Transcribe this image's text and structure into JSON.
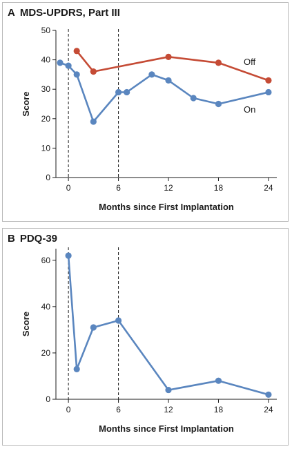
{
  "chart_data": [
    {
      "panel_letter": "A",
      "title": "MDS-UPDRS, Part III",
      "type": "line",
      "xlabel": "Months since First Implantation",
      "ylabel": "Score",
      "xlim": [
        -1.5,
        25
      ],
      "ylim": [
        0,
        50
      ],
      "xticks": [
        0,
        6,
        12,
        18,
        24
      ],
      "yticks": [
        0,
        10,
        20,
        30,
        40,
        50
      ],
      "reference_lines_x": [
        0,
        6
      ],
      "grid": false,
      "series": [
        {
          "name": "Off",
          "color": "#c54b35",
          "x": [
            1,
            3,
            12,
            18,
            24
          ],
          "y": [
            43,
            36,
            41,
            39,
            33
          ]
        },
        {
          "name": "On",
          "color": "#5a86bf",
          "x": [
            -1,
            0,
            1,
            3,
            6,
            7,
            10,
            12,
            15,
            18,
            24
          ],
          "y": [
            39,
            38,
            35,
            19,
            29,
            29,
            35,
            33,
            27,
            25,
            29
          ]
        }
      ]
    },
    {
      "panel_letter": "B",
      "title": "PDQ-39",
      "type": "line",
      "xlabel": "Months since First Implantation",
      "ylabel": "Score",
      "xlim": [
        -1.5,
        25
      ],
      "ylim": [
        0,
        65
      ],
      "xticks": [
        0,
        6,
        12,
        18,
        24
      ],
      "yticks": [
        0,
        20,
        40,
        60
      ],
      "reference_lines_x": [
        0,
        6
      ],
      "grid": false,
      "series": [
        {
          "color": "#5a86bf",
          "x": [
            0,
            1,
            3,
            6,
            12,
            18,
            24
          ],
          "y": [
            62,
            13,
            31,
            34,
            4,
            8,
            2
          ]
        }
      ]
    }
  ]
}
